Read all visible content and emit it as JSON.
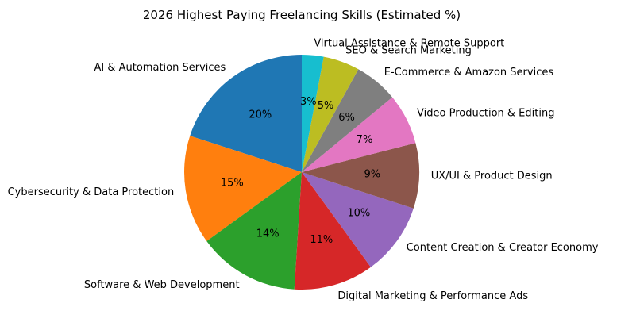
{
  "chart_data": {
    "type": "pie",
    "title": "2026 Highest Paying Freelancing Skills (Estimated %)",
    "start_angle_deg": 90,
    "direction": "counterclockwise",
    "slices": [
      {
        "label": "AI & Automation Services",
        "value": 20,
        "pct_label": "20%",
        "color": "#1f77b4"
      },
      {
        "label": "Cybersecurity & Data Protection",
        "value": 15,
        "pct_label": "15%",
        "color": "#ff7f0e"
      },
      {
        "label": "Software & Web Development",
        "value": 14,
        "pct_label": "14%",
        "color": "#2ca02c"
      },
      {
        "label": "Digital Marketing & Performance Ads",
        "value": 11,
        "pct_label": "11%",
        "color": "#d62728"
      },
      {
        "label": "Content Creation & Creator Economy",
        "value": 10,
        "pct_label": "10%",
        "color": "#9467bd"
      },
      {
        "label": "UX/UI & Product Design",
        "value": 9,
        "pct_label": "9%",
        "color": "#8c564b"
      },
      {
        "label": "Video Production & Editing",
        "value": 7,
        "pct_label": "7%",
        "color": "#e377c2"
      },
      {
        "label": "E-Commerce & Amazon Services",
        "value": 6,
        "pct_label": "6%",
        "color": "#7f7f7f"
      },
      {
        "label": "SEO & Search Marketing",
        "value": 5,
        "pct_label": "5%",
        "color": "#bcbd22"
      },
      {
        "label": "Virtual Assistance & Remote Support",
        "value": 3,
        "pct_label": "3%",
        "color": "#17becf"
      }
    ]
  }
}
